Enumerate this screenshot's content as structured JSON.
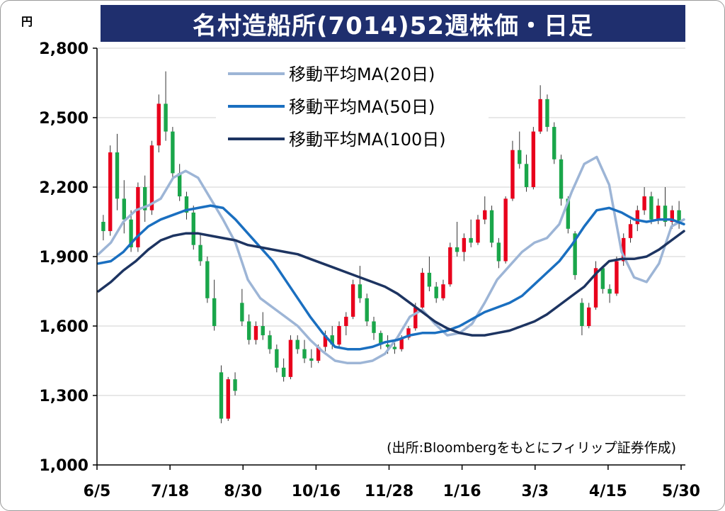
{
  "title": "名村造船所(7014)52週株価・日足",
  "source_note": "(出所:Bloombergをもとにフィリップ証券作成)",
  "chart_data": {
    "type": "candlestick",
    "title": "名村造船所(7014)52週株価・日足",
    "y_unit": "円",
    "ylim": [
      1000,
      2800
    ],
    "y_ticks": [
      1000,
      1300,
      1600,
      1900,
      2200,
      2500,
      2800
    ],
    "y_tick_labels": [
      "1,000",
      "1,300",
      "1,600",
      "1,900",
      "2,200",
      "2,500",
      "2,800"
    ],
    "x_tick_labels": [
      "6/5",
      "7/18",
      "8/30",
      "10/16",
      "11/28",
      "1/16",
      "3/3",
      "4/15",
      "5/30"
    ],
    "grid": true,
    "legend_position": "top-left",
    "colors": {
      "up": "#e8001c",
      "down": "#1aa64a",
      "ma20": "#9db5d6",
      "ma50": "#1a6fc0",
      "ma100": "#1d3461",
      "title_bg": "#1f2f6e"
    },
    "series": [
      {
        "name": "移動平均MA(20日)",
        "color": "#9db5d6",
        "values": [
          1910,
          1960,
          2050,
          2100,
          2120,
          2150,
          2240,
          2270,
          2240,
          2150,
          2060,
          1960,
          1800,
          1720,
          1680,
          1640,
          1600,
          1540,
          1490,
          1450,
          1440,
          1440,
          1450,
          1480,
          1550,
          1640,
          1670,
          1610,
          1560,
          1570,
          1610,
          1700,
          1800,
          1860,
          1920,
          1960,
          1980,
          2040,
          2180,
          2300,
          2330,
          2210,
          1920,
          1810,
          1790,
          1870,
          2030,
          2060
        ]
      },
      {
        "name": "移動平均MA(50日)",
        "color": "#1a6fc0",
        "values": [
          1870,
          1880,
          1920,
          1980,
          2030,
          2060,
          2080,
          2100,
          2110,
          2120,
          2110,
          2060,
          2000,
          1940,
          1880,
          1800,
          1720,
          1640,
          1570,
          1510,
          1500,
          1500,
          1510,
          1530,
          1540,
          1560,
          1570,
          1570,
          1580,
          1600,
          1630,
          1660,
          1680,
          1700,
          1730,
          1780,
          1830,
          1880,
          1950,
          2030,
          2100,
          2110,
          2090,
          2060,
          2050,
          2060,
          2060,
          2040
        ]
      },
      {
        "name": "移動平均MA(100日)",
        "color": "#1d3461",
        "values": [
          1750,
          1790,
          1840,
          1880,
          1930,
          1970,
          1990,
          2000,
          2000,
          1990,
          1980,
          1970,
          1950,
          1940,
          1930,
          1920,
          1910,
          1890,
          1870,
          1850,
          1830,
          1810,
          1790,
          1770,
          1740,
          1700,
          1660,
          1620,
          1590,
          1570,
          1560,
          1560,
          1570,
          1580,
          1600,
          1620,
          1650,
          1690,
          1730,
          1770,
          1830,
          1880,
          1890,
          1890,
          1900,
          1930,
          1970,
          2010
        ]
      }
    ],
    "candles": [
      [
        2050,
        2080,
        1970,
        2010
      ],
      [
        2010,
        2380,
        1990,
        2350
      ],
      [
        2350,
        2430,
        2100,
        2150
      ],
      [
        2150,
        2230,
        2000,
        2060
      ],
      [
        2060,
        2100,
        1920,
        1940
      ],
      [
        1940,
        2220,
        1920,
        2200
      ],
      [
        2200,
        2250,
        2050,
        2100
      ],
      [
        2100,
        2400,
        2080,
        2380
      ],
      [
        2380,
        2600,
        2350,
        2560
      ],
      [
        2560,
        2700,
        2400,
        2440
      ],
      [
        2440,
        2460,
        2240,
        2260
      ],
      [
        2260,
        2300,
        2140,
        2160
      ],
      [
        2160,
        2180,
        2060,
        2090
      ],
      [
        2090,
        2120,
        1930,
        1950
      ],
      [
        1950,
        2000,
        1860,
        1880
      ],
      [
        1880,
        1900,
        1700,
        1720
      ],
      [
        1720,
        1800,
        1580,
        1600
      ],
      [
        1400,
        1430,
        1180,
        1200
      ],
      [
        1200,
        1380,
        1190,
        1370
      ],
      [
        1370,
        1400,
        1300,
        1320
      ],
      [
        1700,
        1760,
        1600,
        1620
      ],
      [
        1620,
        1650,
        1520,
        1540
      ],
      [
        1540,
        1620,
        1520,
        1600
      ],
      [
        1600,
        1660,
        1540,
        1560
      ],
      [
        1560,
        1580,
        1480,
        1500
      ],
      [
        1500,
        1520,
        1400,
        1420
      ],
      [
        1420,
        1460,
        1360,
        1380
      ],
      [
        1380,
        1560,
        1370,
        1540
      ],
      [
        1540,
        1560,
        1480,
        1500
      ],
      [
        1500,
        1540,
        1440,
        1460
      ],
      [
        1460,
        1500,
        1420,
        1450
      ],
      [
        1450,
        1520,
        1440,
        1510
      ],
      [
        1510,
        1580,
        1490,
        1560
      ],
      [
        1560,
        1600,
        1500,
        1520
      ],
      [
        1520,
        1620,
        1510,
        1600
      ],
      [
        1600,
        1660,
        1560,
        1640
      ],
      [
        1640,
        1800,
        1630,
        1780
      ],
      [
        1780,
        1860,
        1700,
        1720
      ],
      [
        1720,
        1740,
        1600,
        1620
      ],
      [
        1620,
        1640,
        1540,
        1570
      ],
      [
        1570,
        1580,
        1500,
        1520
      ],
      [
        1520,
        1560,
        1480,
        1510
      ],
      [
        1510,
        1540,
        1480,
        1500
      ],
      [
        1500,
        1560,
        1490,
        1550
      ],
      [
        1550,
        1600,
        1540,
        1590
      ],
      [
        1590,
        1700,
        1580,
        1680
      ],
      [
        1680,
        1850,
        1670,
        1830
      ],
      [
        1830,
        1900,
        1750,
        1770
      ],
      [
        1770,
        1790,
        1700,
        1720
      ],
      [
        1720,
        1800,
        1710,
        1780
      ],
      [
        1780,
        1960,
        1770,
        1940
      ],
      [
        1940,
        2050,
        1900,
        1920
      ],
      [
        1920,
        2000,
        1880,
        1980
      ],
      [
        1980,
        2060,
        1940,
        1960
      ],
      [
        1960,
        2080,
        1950,
        2060
      ],
      [
        2060,
        2160,
        2040,
        2100
      ],
      [
        2100,
        2120,
        1940,
        1960
      ],
      [
        1960,
        1980,
        1850,
        1880
      ],
      [
        1880,
        2160,
        1870,
        2150
      ],
      [
        2150,
        2400,
        2140,
        2360
      ],
      [
        2360,
        2440,
        2280,
        2300
      ],
      [
        2300,
        2340,
        2180,
        2200
      ],
      [
        2200,
        2460,
        2190,
        2440
      ],
      [
        2440,
        2640,
        2430,
        2580
      ],
      [
        2580,
        2600,
        2440,
        2460
      ],
      [
        2460,
        2480,
        2300,
        2320
      ],
      [
        2320,
        2340,
        2120,
        2150
      ],
      [
        2150,
        2160,
        2000,
        2020
      ],
      [
        2000,
        2010,
        1800,
        1820
      ],
      [
        1700,
        1720,
        1560,
        1600
      ],
      [
        1600,
        1700,
        1590,
        1680
      ],
      [
        1680,
        1880,
        1670,
        1850
      ],
      [
        1850,
        1860,
        1740,
        1760
      ],
      [
        1760,
        1780,
        1700,
        1740
      ],
      [
        1740,
        1900,
        1730,
        1880
      ],
      [
        1880,
        2000,
        1860,
        1980
      ],
      [
        1980,
        2060,
        1960,
        2040
      ],
      [
        2040,
        2120,
        2010,
        2100
      ],
      [
        2100,
        2200,
        2080,
        2160
      ],
      [
        2160,
        2180,
        2040,
        2060
      ],
      [
        2060,
        2150,
        2040,
        2120
      ],
      [
        2120,
        2200,
        2030,
        2050
      ],
      [
        2050,
        2120,
        2020,
        2100
      ],
      [
        2100,
        2140,
        2020,
        2050
      ]
    ]
  }
}
